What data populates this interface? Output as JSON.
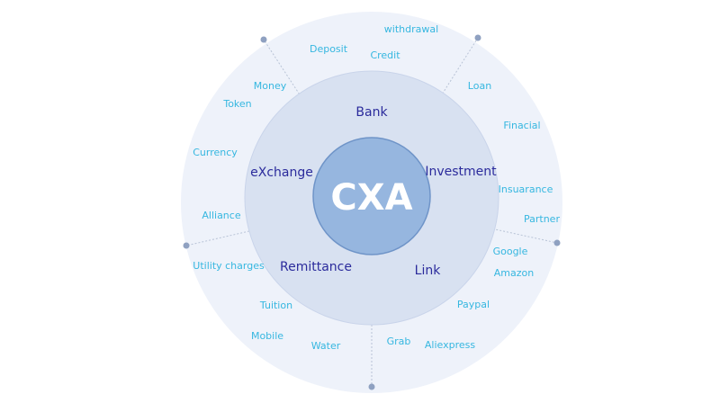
{
  "colors": {
    "outer_ring": "#eef2fa",
    "middle_ring": "#d8e1f1",
    "core": "#96b6df",
    "core_stroke": "#6f94c8",
    "sector_text": "#2b2b9c",
    "outer_text": "#36b7e0",
    "divider": "#b8c3d6",
    "marker": "#8fa1c1",
    "center_text": "#ffffff"
  },
  "center": {
    "label": "CXA"
  },
  "sectors": [
    {
      "label": "Bank"
    },
    {
      "label": "Investment"
    },
    {
      "label": "Link"
    },
    {
      "label": "Remittance"
    },
    {
      "label": "eXchange"
    }
  ],
  "outer_items": [
    {
      "label": "withdrawal"
    },
    {
      "label": "Deposit"
    },
    {
      "label": "Credit"
    },
    {
      "label": "Loan"
    },
    {
      "label": "Finacial"
    },
    {
      "label": "Insuarance"
    },
    {
      "label": "Partner"
    },
    {
      "label": "Google"
    },
    {
      "label": "Amazon"
    },
    {
      "label": "Paypal"
    },
    {
      "label": "Aliexpress"
    },
    {
      "label": "Grab"
    },
    {
      "label": "Water"
    },
    {
      "label": "Mobile"
    },
    {
      "label": "Tuition"
    },
    {
      "label": "Utility charges"
    },
    {
      "label": "Alliance"
    },
    {
      "label": "Currency"
    },
    {
      "label": "Token"
    },
    {
      "label": "Money"
    }
  ]
}
